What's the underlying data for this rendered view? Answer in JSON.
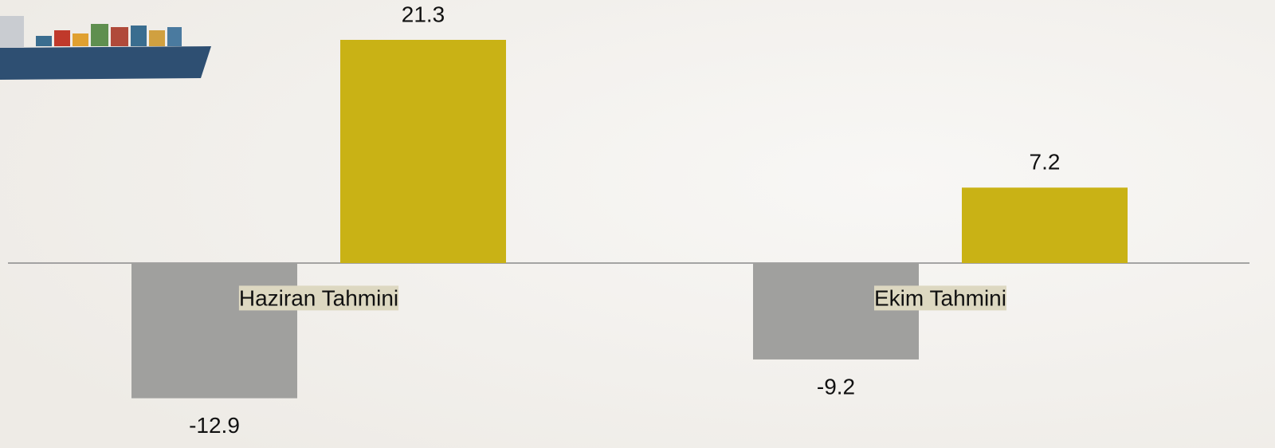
{
  "chart_data": {
    "type": "bar",
    "categories": [
      "Haziran Tahmini",
      "Ekim Tahmini"
    ],
    "series": [
      {
        "color": "#a0a09e",
        "values": [
          -12.9,
          -9.2
        ]
      },
      {
        "color": "#c9b215",
        "values": [
          21.3,
          7.2
        ]
      }
    ]
  }
}
